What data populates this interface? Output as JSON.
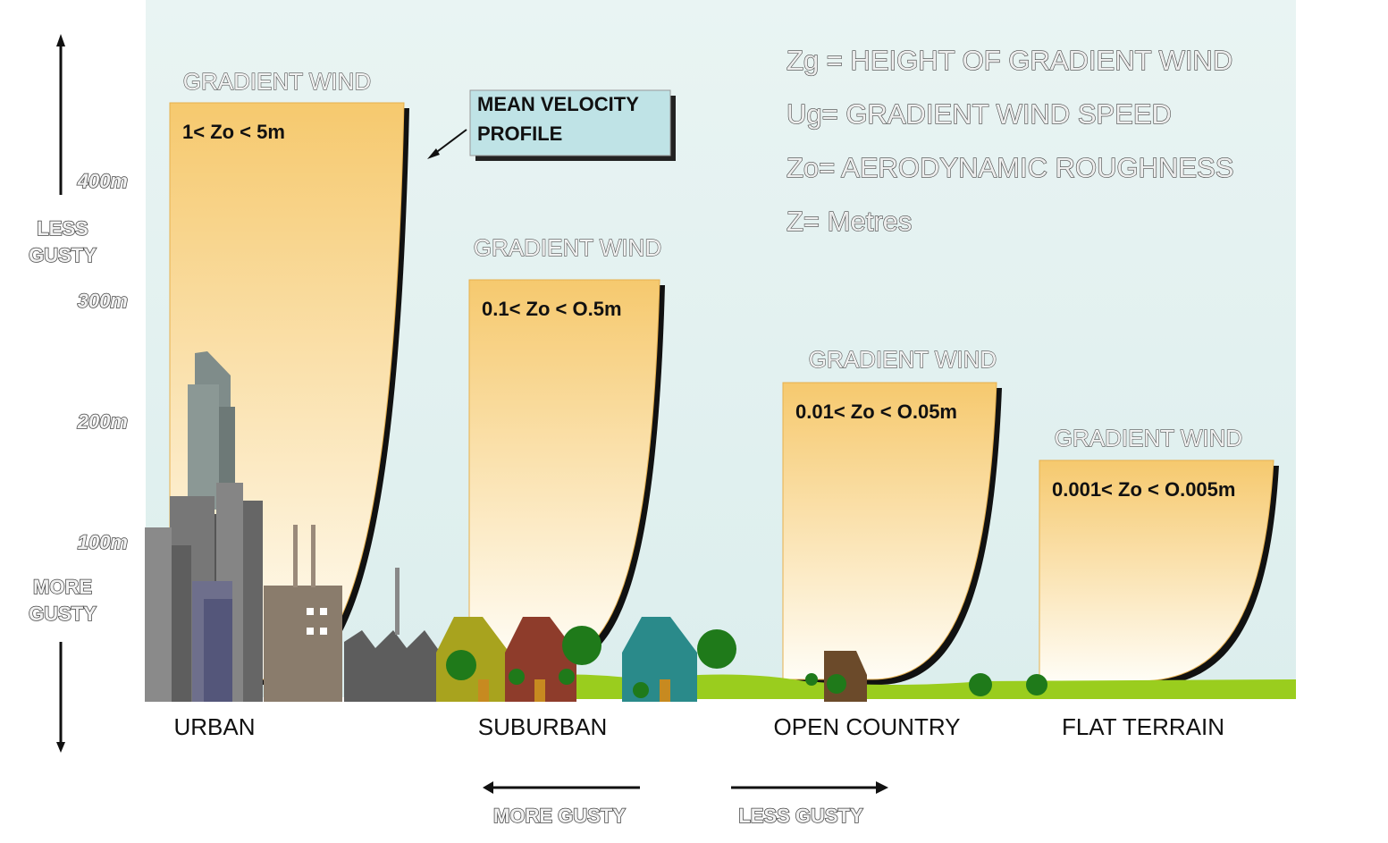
{
  "axis": {
    "heights": [
      "400m",
      "300m",
      "200m",
      "100m"
    ],
    "less_gusty": [
      "LESS",
      "GUSTY"
    ],
    "more_gusty": [
      "MORE",
      "GUSTY"
    ]
  },
  "profiles": [
    {
      "title": "GRADIENT WIND",
      "roughness": "1< Zo < 5m",
      "terrain": "URBAN"
    },
    {
      "title": "GRADIENT WIND",
      "roughness": "0.1< Zo < O.5m",
      "terrain": "SUBURBAN"
    },
    {
      "title": "GRADIENT WIND",
      "roughness": "0.01< Zo < O.05m",
      "terrain": "OPEN COUNTRY"
    },
    {
      "title": "GRADIENT WIND",
      "roughness": "0.001< Zo < O.005m",
      "terrain": "FLAT TERRAIN"
    }
  ],
  "callout": [
    "MEAN VELOCITY",
    "PROFILE"
  ],
  "legend": [
    "Zg = HEIGHT OF GRADIENT WIND",
    "Ug= GRADIENT WIND SPEED",
    "Zo= AERODYNAMIC ROUGHNESS",
    "Z= Metres"
  ],
  "gustiness": {
    "more": "MORE GUSTY",
    "less": "LESS GUSTY"
  }
}
